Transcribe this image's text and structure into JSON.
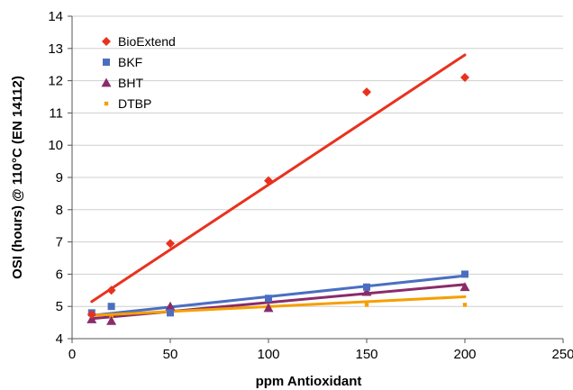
{
  "chart_data": {
    "type": "scatter",
    "xlabel": "ppm Antioxidant",
    "ylabel": "OSI (hours) @ 110°C (EN 14112)",
    "xlim": [
      0,
      250
    ],
    "ylim": [
      4,
      14
    ],
    "xticks": [
      0,
      50,
      100,
      150,
      200,
      250
    ],
    "yticks": [
      4,
      5,
      6,
      7,
      8,
      9,
      10,
      11,
      12,
      13,
      14
    ],
    "grid": "horizontal",
    "legend_position": "top-left",
    "series": [
      {
        "name": "BioExtend",
        "marker": "diamond",
        "color": "#e8321e",
        "x": [
          10,
          20,
          50,
          100,
          150,
          200
        ],
        "y": [
          4.75,
          5.5,
          6.95,
          8.9,
          11.65,
          12.1
        ],
        "trendline": [
          [
            10,
            5.15
          ],
          [
            200,
            12.8
          ]
        ]
      },
      {
        "name": "BKF",
        "marker": "square",
        "color": "#4a6fc1",
        "x": [
          10,
          20,
          50,
          100,
          150,
          200
        ],
        "y": [
          4.8,
          5.0,
          4.8,
          5.25,
          5.6,
          6.0
        ],
        "trendline": [
          [
            10,
            4.72
          ],
          [
            200,
            5.95
          ]
        ]
      },
      {
        "name": "BHT",
        "marker": "triangle",
        "color": "#8a2c6a",
        "x": [
          10,
          20,
          50,
          100,
          150,
          200
        ],
        "y": [
          4.6,
          4.55,
          5.0,
          4.95,
          5.45,
          5.6
        ],
        "trendline": [
          [
            10,
            4.62
          ],
          [
            200,
            5.68
          ]
        ]
      },
      {
        "name": "DTBP",
        "marker": "square-small",
        "color": "#f5a000",
        "x": [
          10,
          20,
          50,
          100,
          150,
          200
        ],
        "y": [
          4.7,
          4.7,
          4.9,
          5.0,
          5.05,
          5.05
        ],
        "trendline": [
          [
            10,
            4.72
          ],
          [
            200,
            5.3
          ]
        ]
      }
    ]
  }
}
